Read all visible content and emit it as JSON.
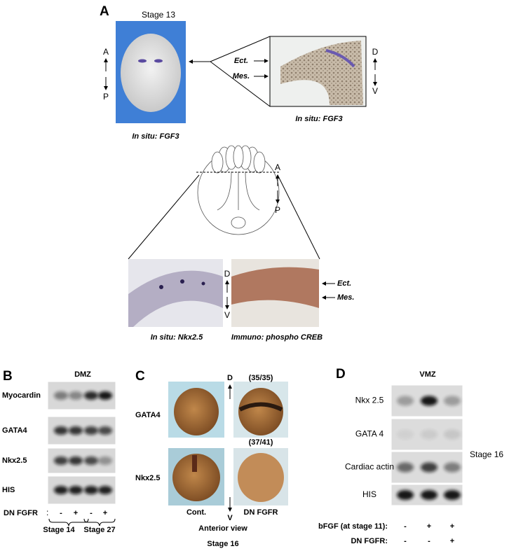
{
  "panels": {
    "A": {
      "label": "A",
      "stage": "Stage 13",
      "ap_top": "A",
      "ap_bottom": "P",
      "caption_embryo": "In situ: FGF3",
      "caption_section": "In situ: FGF3",
      "ect": "Ect.",
      "mes": "Mes.",
      "dv_top": "D",
      "dv_bottom": "V",
      "drawing_ap_top": "A",
      "drawing_ap_bottom": "P",
      "lower_dv_top": "D",
      "lower_dv_bottom": "V",
      "lower_ect": "Ect.",
      "lower_mes": "Mes.",
      "caption_nkx": "In situ: Nkx2.5",
      "caption_creb": "Immuno: phospho CREB"
    },
    "B": {
      "label": "B",
      "title": "DMZ",
      "rows": [
        "Myocardin",
        "GATA4",
        "Nkx2.5",
        "HIS"
      ],
      "treatment": "DN FGFR",
      "signs": [
        "-",
        "+",
        "-",
        "+"
      ],
      "stages": [
        "Stage 14",
        "Stage 27"
      ]
    },
    "C": {
      "label": "C",
      "rows": [
        "GATA4",
        "Nkx2.5"
      ],
      "axis_top": "D",
      "axis_bottom": "V",
      "counts": [
        "(35/35)",
        "(37/41)"
      ],
      "columns": [
        "Cont.",
        "DN FGFR"
      ],
      "view": "Anterior view",
      "stage": "Stage 16"
    },
    "D": {
      "label": "D",
      "title": "VMZ",
      "rows": [
        "Nkx 2.5",
        "GATA 4",
        "Cardiac actin",
        "HIS"
      ],
      "stage": "Stage 16",
      "treatments": [
        {
          "name": "bFGF (at stage 11):",
          "signs": [
            "-",
            "+",
            "+"
          ]
        },
        {
          "name": "DN FGFR:",
          "signs": [
            "-",
            "-",
            "+"
          ]
        }
      ]
    }
  }
}
